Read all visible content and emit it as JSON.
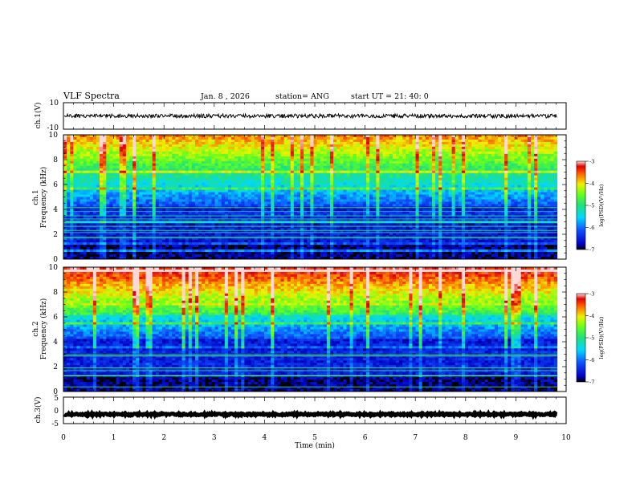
{
  "header": {
    "title": "VLF Spectra",
    "date": "Jan. 8 , 2026",
    "station": "station= ANG",
    "start_ut": "start UT =   21: 40: 0"
  },
  "chart_data": {
    "type": "heatmap",
    "x_label": "Time (min)",
    "x_range": [
      0,
      10
    ],
    "x_ticks": [
      0,
      1,
      2,
      3,
      4,
      5,
      6,
      7,
      8,
      9,
      10
    ],
    "data_end_min": 9.82,
    "panels": [
      {
        "id": "ch1-waveform",
        "kind": "waveform",
        "ylabel": "ch.1(V)",
        "y_range": [
          -10,
          10
        ],
        "y_tick_labels": [
          "10",
          "-10"
        ],
        "baseline_v": 0,
        "amplitude_v": 1.5
      },
      {
        "id": "ch1-spectrogram",
        "kind": "spectrogram",
        "ylabel_lines": [
          "ch.1",
          "Frequency (kHz)"
        ],
        "y_range": [
          0,
          10
        ],
        "y_ticks": [
          0,
          2,
          4,
          6,
          8,
          10
        ],
        "colorbar": {
          "label": "log(PSD)(V²/Hz)",
          "range": [
            -7,
            -3
          ],
          "ticks": [
            "-3",
            "-4",
            "-5",
            "-6",
            "-7"
          ]
        }
      },
      {
        "id": "ch2-spectrogram",
        "kind": "spectrogram",
        "ylabel_lines": [
          "ch.2",
          "Frequency (kHz)"
        ],
        "y_range": [
          0,
          10
        ],
        "y_ticks": [
          0,
          2,
          4,
          6,
          8,
          10
        ],
        "colorbar": {
          "label": "log(PSD)(V²/Hz)",
          "range": [
            -7,
            -3
          ],
          "ticks": [
            "-3",
            "-4",
            "-5",
            "-6",
            "-7"
          ]
        }
      },
      {
        "id": "ch3-waveform",
        "kind": "waveform",
        "ylabel": "ch.3(V)",
        "y_range": [
          -5,
          5
        ],
        "y_tick_labels": [
          "5",
          "0",
          "-5"
        ],
        "baseline_v": -1.5,
        "amplitude_v": 0.3
      }
    ]
  }
}
